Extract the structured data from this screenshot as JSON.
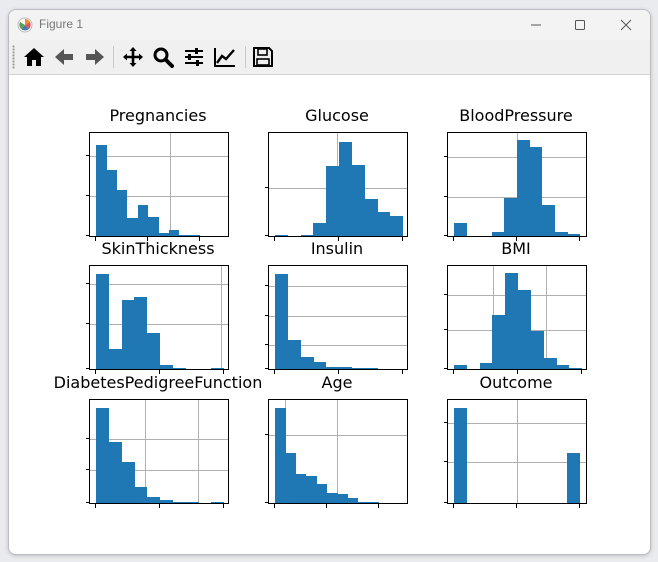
{
  "window": {
    "title": "Figure 1",
    "controls": [
      "minimize",
      "maximize",
      "close"
    ]
  },
  "toolbar": {
    "buttons": [
      {
        "name": "home-icon",
        "tooltip": "Reset original view"
      },
      {
        "name": "back-icon",
        "tooltip": "Back to previous view"
      },
      {
        "name": "forward-icon",
        "tooltip": "Forward to next view"
      },
      {
        "name": "pan-icon",
        "tooltip": "Pan axes"
      },
      {
        "name": "zoom-icon",
        "tooltip": "Zoom to rectangle"
      },
      {
        "name": "subplots-icon",
        "tooltip": "Configure subplots"
      },
      {
        "name": "customize-icon",
        "tooltip": "Edit axis, curve and image parameters"
      },
      {
        "name": "save-icon",
        "tooltip": "Save the figure"
      }
    ]
  },
  "colors": {
    "bar": "#1f77b4",
    "grid": "#b0b0b0"
  },
  "chart_data": [
    {
      "type": "bar",
      "title": "Pregnancies",
      "grid": true,
      "bins": 10,
      "values": [
        0.92,
        0.67,
        0.46,
        0.18,
        0.31,
        0.19,
        0.03,
        0.06,
        0.01,
        0.01
      ]
    },
    {
      "type": "bar",
      "title": "Glucose",
      "grid": true,
      "bins": 10,
      "values": [
        0.01,
        0.0,
        0.01,
        0.13,
        0.71,
        0.95,
        0.72,
        0.37,
        0.24,
        0.2
      ]
    },
    {
      "type": "bar",
      "title": "BloodPressure",
      "grid": true,
      "bins": 10,
      "values": [
        0.13,
        0.0,
        0.0,
        0.04,
        0.38,
        0.97,
        0.9,
        0.31,
        0.04,
        0.02
      ]
    },
    {
      "type": "bar",
      "title": "SkinThickness",
      "grid": true,
      "bins": 10,
      "values": [
        0.96,
        0.2,
        0.7,
        0.73,
        0.36,
        0.04,
        0.01,
        0.0,
        0.0,
        0.01
      ]
    },
    {
      "type": "bar",
      "title": "Insulin",
      "grid": true,
      "bins": 10,
      "values": [
        0.96,
        0.29,
        0.12,
        0.07,
        0.02,
        0.02,
        0.01,
        0.01,
        0.0,
        0.0
      ]
    },
    {
      "type": "bar",
      "title": "BMI",
      "grid": true,
      "bins": 10,
      "values": [
        0.04,
        0.0,
        0.06,
        0.55,
        0.97,
        0.8,
        0.38,
        0.11,
        0.04,
        0.01
      ]
    },
    {
      "type": "bar",
      "title": "DiabetesPedigreeFunction",
      "grid": true,
      "bins": 10,
      "values": [
        0.96,
        0.62,
        0.41,
        0.16,
        0.06,
        0.03,
        0.01,
        0.01,
        0.0,
        0.01
      ]
    },
    {
      "type": "bar",
      "title": "Age",
      "grid": true,
      "bins": 10,
      "values": [
        0.96,
        0.5,
        0.29,
        0.27,
        0.19,
        0.1,
        0.09,
        0.05,
        0.01,
        0.01
      ]
    },
    {
      "type": "bar",
      "title": "Outcome",
      "grid": true,
      "bins": 10,
      "values": [
        0.96,
        0.0,
        0.0,
        0.0,
        0.0,
        0.0,
        0.0,
        0.0,
        0.0,
        0.51
      ]
    }
  ]
}
